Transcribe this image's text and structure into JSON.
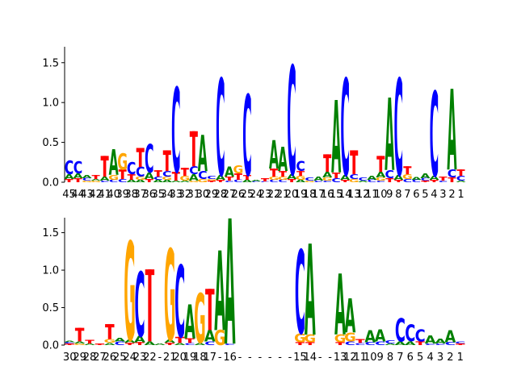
{
  "colors": {
    "A": "#008000",
    "C": "#0000ff",
    "G": "#ffa500",
    "T": "#ff0000",
    "axis": "#000000"
  },
  "chart_data": [
    {
      "type": "sequence-logo",
      "ylim": [
        0,
        1.7
      ],
      "yticks": [
        0.0,
        0.5,
        1.0,
        1.5
      ],
      "ytick_labels": [
        "0.0",
        "0.5",
        "1.0",
        "1.5"
      ],
      "xtick_labels": [
        "45",
        "44",
        "43",
        "42",
        "41",
        "40",
        "39",
        "38",
        "37",
        "36",
        "35",
        "34",
        "33",
        "32",
        "31",
        "30",
        "29",
        "28",
        "27",
        "26",
        "25",
        "24",
        "23",
        "22",
        "21",
        "20",
        "19",
        "18",
        "17",
        "16",
        "15",
        "14",
        "13",
        "12",
        "11",
        "10",
        "9",
        "8",
        "7",
        "6",
        "5",
        "4",
        "3",
        "2",
        "1"
      ],
      "positions": [
        {
          "C": 0.17,
          "A": 0.06,
          "T": 0.04
        },
        {
          "C": 0.15,
          "A": 0.06,
          "T": 0.05
        },
        {
          "A": 0.04,
          "C": 0.03,
          "G": 0.02
        },
        {
          "T": 0.05,
          "G": 0.02,
          "A": 0.02
        },
        {
          "T": 0.26,
          "A": 0.05,
          "C": 0.02
        },
        {
          "A": 0.32,
          "G": 0.06,
          "C": 0.03
        },
        {
          "G": 0.2,
          "T": 0.12,
          "C": 0.04
        },
        {
          "C": 0.15,
          "T": 0.07,
          "A": 0.03
        },
        {
          "T": 0.24,
          "C": 0.12,
          "G": 0.04,
          "A": 0.03
        },
        {
          "C": 0.35,
          "A": 0.08,
          "T": 0.04
        },
        {
          "T": 0.08,
          "C": 0.04,
          "A": 0.03
        },
        {
          "T": 0.26,
          "C": 0.07,
          "G": 0.04,
          "A": 0.03
        },
        {
          "C": 1.05,
          "T": 0.11,
          "A": 0.02
        },
        {
          "T": 0.1,
          "G": 0.06,
          "A": 0.02
        },
        {
          "T": 0.44,
          "C": 0.1,
          "A": 0.08,
          "G": 0.02
        },
        {
          "A": 0.45,
          "C": 0.1,
          "G": 0.04
        },
        {
          "C": 0.04,
          "G": 0.02,
          "T": 0.02
        },
        {
          "C": 1.2,
          "A": 0.06,
          "T": 0.03
        },
        {
          "A": 0.12,
          "T": 0.05,
          "C": 0.02
        },
        {
          "G": 0.1,
          "T": 0.08,
          "C": 0.03
        },
        {
          "C": 1.0,
          "T": 0.06,
          "A": 0.03
        },
        {
          "A": 0.02,
          "C": 0.01
        },
        {
          "T": 0.04,
          "C": 0.01
        },
        {
          "A": 0.35,
          "T": 0.1,
          "G": 0.04,
          "C": 0.03
        },
        {
          "A": 0.3,
          "T": 0.07,
          "G": 0.04,
          "C": 0.03
        },
        {
          "C": 1.35,
          "A": 0.06,
          "T": 0.04
        },
        {
          "T": 0.06,
          "C": 0.12,
          "G": 0.05,
          "A": 0.03
        },
        {
          "C": 0.04,
          "G": 0.02
        },
        {
          "A": 0.05,
          "C": 0.02
        },
        {
          "T": 0.22,
          "A": 0.07,
          "G": 0.04,
          "C": 0.02
        },
        {
          "A": 0.9,
          "T": 0.07,
          "C": 0.05
        },
        {
          "C": 1.2,
          "A": 0.06,
          "T": 0.03
        },
        {
          "T": 0.3,
          "C": 0.06,
          "G": 0.04
        },
        {
          "C": 0.04,
          "A": 0.02
        },
        {
          "A": 0.05,
          "C": 0.03
        },
        {
          "T": 0.2,
          "A": 0.07,
          "G": 0.04,
          "C": 0.02
        },
        {
          "A": 0.9,
          "C": 0.1,
          "T": 0.05
        },
        {
          "C": 1.2,
          "A": 0.06,
          "T": 0.03
        },
        {
          "T": 0.1,
          "G": 0.06,
          "C": 0.04
        },
        {
          "C": 0.03,
          "A": 0.03
        },
        {
          "A": 0.06,
          "C": 0.03,
          "T": 0.02
        },
        {
          "C": 1.05,
          "A": 0.05,
          "T": 0.03
        },
        {
          "T": 0.05,
          "C": 0.02
        },
        {
          "A": 1.0,
          "C": 0.1,
          "T": 0.06
        },
        {
          "T": 0.08,
          "C": 0.06,
          "A": 0.02
        }
      ]
    },
    {
      "type": "sequence-logo",
      "ylim": [
        0,
        1.7
      ],
      "yticks": [
        0.0,
        0.5,
        1.0,
        1.5
      ],
      "ytick_labels": [
        "0.0",
        "0.5",
        "1.0",
        "1.5"
      ],
      "xtick_labels": [
        "30",
        "29",
        "28",
        "27",
        "26",
        "25",
        "24",
        "23",
        "22",
        "-",
        "21",
        "20",
        "19",
        "18",
        "17",
        "-",
        "16",
        "-",
        "-",
        "-",
        "-",
        "-",
        "-",
        "15",
        "14",
        "-",
        "-",
        "13",
        "12",
        "11",
        "10",
        "9",
        "8",
        "7",
        "6",
        "5",
        "4",
        "3",
        "2",
        "1"
      ],
      "positions": [
        {
          "A": 0.02,
          "C": 0.02,
          "T": 0.02
        },
        {
          "T": 0.18,
          "A": 0.03,
          "G": 0.02
        },
        {
          "T": 0.05,
          "A": 0.02
        },
        {
          "T": 0.02
        },
        {
          "T": 0.2,
          "G": 0.05,
          "A": 0.03
        },
        {
          "C": 0.05,
          "A": 0.05
        },
        {
          "G": 1.3,
          "A": 0.04,
          "T": 0.03
        },
        {
          "C": 0.85,
          "A": 0.08,
          "T": 0.04
        },
        {
          "T": 0.96,
          "A": 0.05
        },
        {
          "A": 0.02
        },
        {
          "G": 1.2,
          "A": 0.04,
          "T": 0.03
        },
        {
          "C": 0.95,
          "T": 0.08,
          "A": 0.03
        },
        {
          "A": 0.45,
          "T": 0.06,
          "C": 0.03
        },
        {
          "G": 0.65,
          "A": 0.03
        },
        {
          "A": 0.15,
          "T": 0.55,
          "C": 0.05
        },
        {
          "A": 1.05,
          "G": 0.2
        },
        {
          "A": 1.65,
          "C": 0.02
        },
        {},
        {},
        {},
        {},
        {},
        {},
        {
          "C": 1.1,
          "G": 0.12,
          "T": 0.04
        },
        {
          "A": 1.2,
          "G": 0.1,
          "T": 0.04
        },
        {},
        {},
        {
          "A": 0.8,
          "G": 0.1,
          "T": 0.04
        },
        {
          "A": 0.45,
          "G": 0.12,
          "C": 0.05
        },
        {
          "T": 0.05,
          "C": 0.03
        },
        {
          "A": 0.16,
          "C": 0.04
        },
        {
          "A": 0.16,
          "C": 0.05
        },
        {
          "C": 0.04,
          "A": 0.02
        },
        {
          "C": 0.3,
          "A": 0.05
        },
        {
          "C": 0.22,
          "A": 0.05
        },
        {
          "C": 0.16,
          "T": 0.05
        },
        {
          "A": 0.1,
          "C": 0.02
        },
        {
          "A": 0.06,
          "C": 0.02
        },
        {
          "A": 0.16,
          "C": 0.04
        },
        {
          "C": 0.03,
          "T": 0.02
        }
      ]
    }
  ]
}
